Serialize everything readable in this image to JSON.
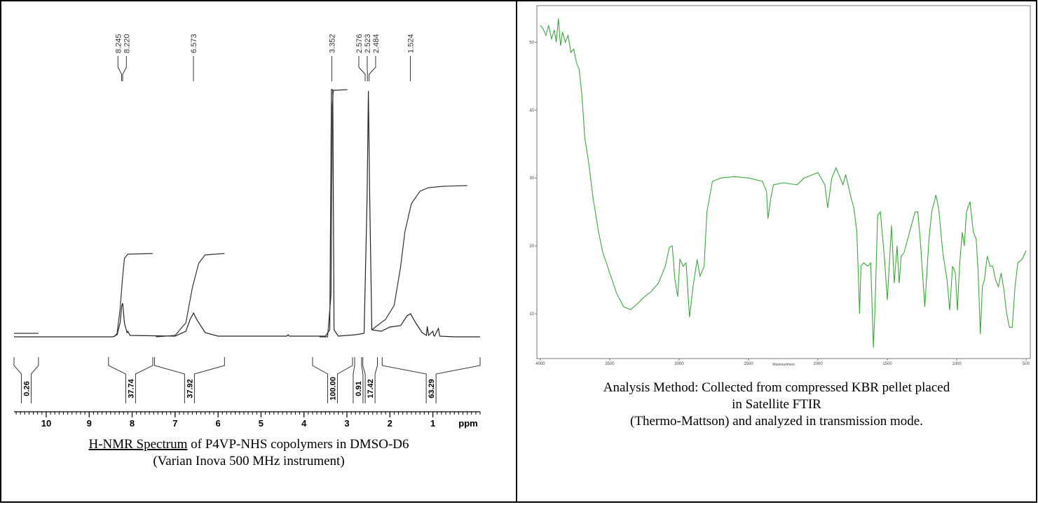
{
  "nmr": {
    "peak_labels": [
      "8.245",
      "8.220",
      "6.573",
      "3.352",
      "2.576",
      "2.523",
      "2.484",
      "1.524"
    ],
    "xlim": [
      10.75,
      -0.1
    ],
    "xticks": [
      10,
      9,
      8,
      7,
      6,
      5,
      4,
      3,
      2,
      1
    ],
    "x_unit": "ppm",
    "spectrum": {
      "x": [
        10.75,
        8.45,
        8.35,
        8.28,
        8.24,
        8.22,
        8.18,
        8.12,
        8.1,
        8.05,
        7.0,
        6.75,
        6.65,
        6.57,
        6.5,
        6.3,
        6.0,
        4.4,
        4.37,
        4.34,
        3.5,
        3.4,
        3.36,
        3.33,
        3.3,
        3.2,
        2.8,
        2.6,
        2.53,
        2.5,
        2.47,
        2.42,
        2.2,
        2.0,
        1.75,
        1.6,
        1.52,
        1.4,
        1.25,
        1.15,
        1.13,
        1.1,
        1.0,
        0.98,
        0.96,
        0.87,
        0.84,
        0.5,
        -0.1
      ],
      "y": [
        0,
        0,
        3,
        20,
        45,
        48,
        20,
        6,
        8,
        2,
        1,
        8,
        25,
        34,
        25,
        6,
        1,
        1,
        3,
        1,
        1,
        10,
        353,
        353,
        10,
        1,
        3,
        5,
        200,
        351,
        200,
        10,
        8,
        14,
        16,
        30,
        33,
        20,
        6,
        2,
        15,
        2,
        8,
        2,
        1,
        12,
        1,
        0,
        0
      ]
    },
    "integral": {
      "x": [
        10.75,
        10.18,
        null,
        8.42,
        8.35,
        8.28,
        8.23,
        8.18,
        8.1,
        7.52,
        null,
        7.45,
        7.0,
        6.75,
        6.6,
        6.45,
        6.3,
        5.85,
        null,
        3.64,
        3.45,
        3.37,
        3.34,
        3.32,
        3.3,
        2.99,
        null,
        2.42,
        2.1,
        1.9,
        1.75,
        1.65,
        1.5,
        1.3,
        1.1,
        0.75,
        0.2
      ],
      "y": [
        5,
        5,
        null,
        0,
        5,
        40,
        80,
        112,
        118,
        119,
        null,
        0,
        2,
        20,
        70,
        105,
        117,
        119,
        null,
        0,
        0,
        60,
        330,
        350,
        352,
        353,
        null,
        10,
        25,
        45,
        100,
        150,
        190,
        208,
        213,
        215,
        216
      ]
    },
    "integrals": [
      {
        "from": 10.75,
        "to": 10.18,
        "label": "0.26"
      },
      {
        "from": 8.55,
        "to": 7.52,
        "label": "37.74"
      },
      {
        "from": 7.48,
        "to": 5.85,
        "label": "37.92"
      },
      {
        "from": 3.8,
        "to": 2.87,
        "label": "100.00"
      },
      {
        "from": 2.82,
        "to": 2.66,
        "label": "0.91"
      },
      {
        "from": 2.63,
        "to": 2.29,
        "label": "17.42"
      },
      {
        "from": 2.18,
        "to": -0.1,
        "label": "63.29"
      }
    ]
  },
  "ftir": {
    "xlim": [
      4025,
      470
    ],
    "ylim": [
      3.4,
      55.4
    ],
    "xticks": [
      4000,
      3500,
      3000,
      2500,
      2000,
      1500,
      1000,
      500
    ],
    "yticks": [
      10,
      20,
      30,
      40,
      50
    ],
    "x_label": "Wavenumbers",
    "color": "#3aa83a",
    "x": [
      4000,
      3980,
      3960,
      3940,
      3920,
      3900,
      3885,
      3870,
      3855,
      3840,
      3820,
      3800,
      3780,
      3760,
      3740,
      3720,
      3700,
      3680,
      3650,
      3620,
      3580,
      3550,
      3500,
      3450,
      3400,
      3350,
      3300,
      3250,
      3200,
      3150,
      3100,
      3070,
      3050,
      3030,
      3010,
      2995,
      2970,
      2950,
      2925,
      2900,
      2870,
      2850,
      2820,
      2800,
      2760,
      2700,
      2600,
      2500,
      2400,
      2370,
      2360,
      2340,
      2320,
      2250,
      2150,
      2100,
      2000,
      1950,
      1930,
      1900,
      1870,
      1840,
      1820,
      1800,
      1760,
      1740,
      1720,
      1710,
      1700,
      1690,
      1670,
      1640,
      1620,
      1600,
      1590,
      1570,
      1550,
      1520,
      1500,
      1470,
      1450,
      1430,
      1415,
      1400,
      1380,
      1340,
      1300,
      1280,
      1260,
      1230,
      1200,
      1180,
      1150,
      1130,
      1100,
      1070,
      1050,
      1030,
      1010,
      995,
      980,
      960,
      945,
      930,
      905,
      880,
      860,
      845,
      830,
      815,
      800,
      780,
      760,
      740,
      720,
      700,
      680,
      660,
      640,
      620,
      600,
      580,
      560,
      530,
      500
    ],
    "values": [
      52.5,
      52,
      51,
      52.5,
      50.5,
      51.8,
      50,
      53.5,
      49.5,
      51.5,
      50,
      51,
      48.5,
      49,
      47,
      46,
      42,
      36,
      32,
      27,
      22,
      19,
      16,
      13,
      11,
      10.6,
      11.5,
      12.5,
      13.3,
      14.5,
      17,
      19.8,
      20,
      15,
      12.5,
      18,
      17,
      17.5,
      9.5,
      14,
      18,
      15.5,
      17,
      25,
      29.5,
      30,
      30.2,
      30,
      29.5,
      28,
      24,
      27,
      29,
      29.3,
      29,
      30,
      30.8,
      29,
      25.6,
      30,
      31.5,
      30,
      29,
      30.5,
      27,
      25.5,
      22,
      16.5,
      10,
      17,
      17.5,
      17,
      17.5,
      5,
      10,
      24.5,
      25,
      18,
      12,
      23,
      14.5,
      20,
      14.5,
      18.5,
      19,
      22,
      25,
      25,
      20,
      11,
      21,
      25,
      27.5,
      25.5,
      19,
      15,
      10.5,
      17,
      16,
      10.5,
      17,
      22,
      20,
      25,
      26.5,
      22,
      21,
      16,
      7,
      14,
      15,
      18.5,
      17,
      17,
      15,
      14,
      16,
      13.5,
      10,
      8,
      8,
      14,
      17.5,
      18,
      19.3
    ]
  },
  "captions": {
    "nmr_underlined": "H-NMR Spectrum",
    "nmr_rest": " of P4VP-NHS copolymers in DMSO-D6",
    "nmr_line2": "(Varian Inova 500 MHz instrument)",
    "ftir_lines": [
      "Analysis Method: Collected from compressed KBR pellet placed",
      "in Satellite FTIR",
      "(Thermo-Mattson) and analyzed in transmission mode."
    ]
  }
}
